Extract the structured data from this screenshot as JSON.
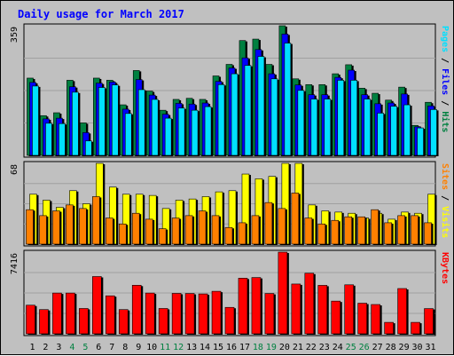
{
  "chart_data": {
    "type": "bar",
    "title": "Daily usage for March 2017",
    "categories": [
      "1",
      "2",
      "3",
      "4",
      "5",
      "6",
      "7",
      "8",
      "9",
      "10",
      "11",
      "12",
      "13",
      "14",
      "15",
      "16",
      "17",
      "18",
      "19",
      "20",
      "21",
      "22",
      "23",
      "24",
      "25",
      "26",
      "27",
      "28",
      "29",
      "30",
      "31"
    ],
    "weekend_days": [
      "4",
      "5",
      "11",
      "12",
      "18",
      "19",
      "25",
      "26"
    ],
    "colors": {
      "hits": "#008040",
      "files": "#0000ff",
      "pages": "#00e0ff",
      "visits": "#ffff00",
      "sites": "#ff8000",
      "kbytes": "#ff0000",
      "weekend_label": "#008040",
      "weekday_label": "#000000"
    },
    "panels": [
      {
        "id": "hits-panel",
        "ymax_label": "359",
        "ymax": 359,
        "legend": [
          {
            "label": "Hits",
            "color": "#008040"
          },
          {
            "label": "Files",
            "color": "#0000ff"
          },
          {
            "label": "Pages",
            "color": "#00e0ff"
          }
        ],
        "series": [
          {
            "name": "Hits",
            "values": [
              214,
              110,
              118,
              208,
              90,
              214,
              208,
              140,
              235,
              178,
              125,
              155,
              158,
              155,
              220,
              252,
              318,
              322,
              252,
              359,
              212,
              196,
              196,
              226,
              251,
              186,
              172,
              153,
              189,
              83,
              147
            ]
          },
          {
            "name": "Files",
            "values": [
              202,
              101,
              103,
              190,
              63,
              200,
              203,
              128,
              210,
              167,
              114,
              144,
              142,
              145,
              205,
              242,
              270,
              293,
              226,
              336,
              195,
              168,
              168,
              216,
              236,
              168,
              143,
              145,
              170,
              79,
              137
            ]
          },
          {
            "name": "Pages",
            "values": [
              192,
              89,
              88,
              175,
              40,
              188,
              195,
              116,
              182,
              155,
              103,
              131,
              125,
              135,
              196,
              226,
              249,
              274,
              212,
              311,
              180,
              156,
              156,
              208,
              208,
              156,
              117,
              136,
              140,
              76,
              127
            ]
          }
        ]
      },
      {
        "id": "visits-panel",
        "ymax_label": "68",
        "ymax": 68,
        "legend": [
          {
            "label": "Visits",
            "color": "#ffff00"
          },
          {
            "label": "Sites",
            "color": "#ff8000"
          }
        ],
        "series": [
          {
            "name": "Visits",
            "values": [
              42,
              37,
              31,
              45,
              34,
              68,
              48,
              42,
              42,
              41,
              30,
              37,
              38,
              40,
              44,
              45,
              59,
              55,
              57,
              68,
              68,
              33,
              28,
              27,
              26,
              22,
              26,
              21,
              27,
              26,
              42
            ]
          },
          {
            "name": "Sites",
            "values": [
              29,
              24,
              28,
              33,
              30,
              40,
              22,
              17,
              26,
              21,
              13,
              22,
              24,
              28,
              24,
              14,
              18,
              24,
              35,
              30,
              43,
              22,
              17,
              20,
              23,
              23,
              29,
              18,
              24,
              24,
              18
            ]
          }
        ]
      },
      {
        "id": "kbytes-panel",
        "ymax_label": "7416",
        "ymax": 7416,
        "legend": [
          {
            "label": "KBytes",
            "color": "#ff0000"
          }
        ],
        "series": [
          {
            "name": "KBytes",
            "values": [
              2600,
              2200,
              3700,
              3700,
              2300,
              5200,
              3450,
              2200,
              4410,
              3700,
              2300,
              3670,
              3660,
              3620,
              3860,
              2400,
              5050,
              5110,
              3660,
              7416,
              4520,
              5500,
              4400,
              2970,
              4450,
              2780,
              2660,
              1040,
              4110,
              1040,
              2290
            ]
          }
        ]
      }
    ]
  }
}
